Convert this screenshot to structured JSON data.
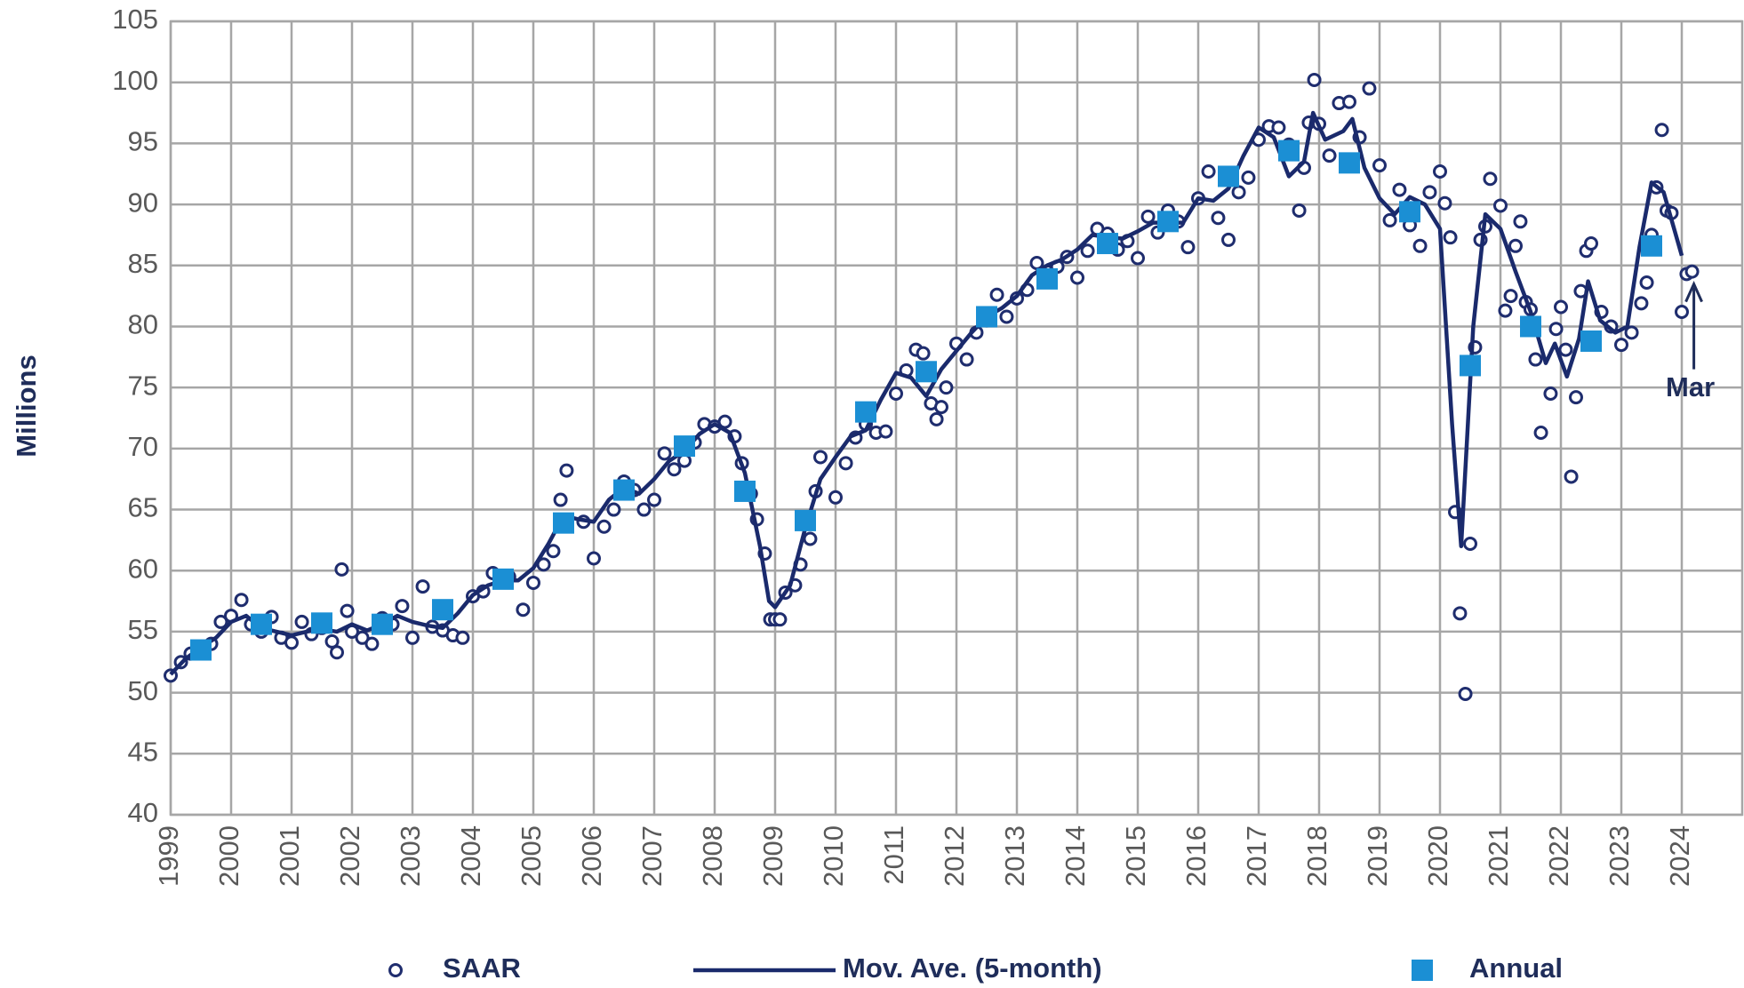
{
  "chart_data": {
    "type": "combo",
    "y_label": "Millions",
    "xlim": [
      1999,
      2025
    ],
    "ylim": [
      40,
      105
    ],
    "xticks": [
      1999,
      2000,
      2001,
      2002,
      2003,
      2004,
      2005,
      2006,
      2007,
      2008,
      2009,
      2010,
      2011,
      2012,
      2013,
      2014,
      2015,
      2016,
      2017,
      2018,
      2019,
      2020,
      2021,
      2022,
      2023,
      2024
    ],
    "yticks": [
      40,
      45,
      50,
      55,
      60,
      65,
      70,
      75,
      80,
      85,
      90,
      95,
      100,
      105
    ],
    "grid": true,
    "legend": "bottom",
    "annotation": {
      "text": "Mar",
      "x": 2024.2,
      "y": 84.5
    },
    "series": [
      {
        "name": "SAAR",
        "type": "scatter",
        "color": "#1f2d6e",
        "x": [
          1999.0,
          1999.17,
          1999.33,
          1999.5,
          1999.67,
          1999.83,
          2000.0,
          2000.17,
          2000.33,
          2000.5,
          2000.67,
          2000.83,
          2001.0,
          2001.17,
          2001.33,
          2001.5,
          2001.67,
          2001.75,
          2001.83,
          2001.92,
          2002.0,
          2002.17,
          2002.33,
          2002.5,
          2002.67,
          2002.83,
          2003.0,
          2003.17,
          2003.33,
          2003.5,
          2003.67,
          2003.83,
          2004.0,
          2004.17,
          2004.33,
          2004.5,
          2004.6,
          2004.83,
          2005.0,
          2005.17,
          2005.33,
          2005.45,
          2005.55,
          2005.83,
          2006.0,
          2006.17,
          2006.33,
          2006.5,
          2006.67,
          2006.83,
          2007.0,
          2007.17,
          2007.33,
          2007.5,
          2007.67,
          2007.83,
          2008.0,
          2008.17,
          2008.33,
          2008.45,
          2008.6,
          2008.7,
          2008.83,
          2008.92,
          2009.0,
          2009.08,
          2009.17,
          2009.33,
          2009.42,
          2009.58,
          2009.67,
          2009.75,
          2010.0,
          2010.17,
          2010.33,
          2010.5,
          2010.67,
          2010.83,
          2011.0,
          2011.17,
          2011.33,
          2011.45,
          2011.58,
          2011.67,
          2011.75,
          2011.83,
          2012.0,
          2012.17,
          2012.33,
          2012.5,
          2012.67,
          2012.83,
          2013.0,
          2013.17,
          2013.33,
          2013.5,
          2013.67,
          2013.83,
          2014.0,
          2014.17,
          2014.33,
          2014.5,
          2014.67,
          2014.83,
          2015.0,
          2015.17,
          2015.33,
          2015.5,
          2015.67,
          2015.83,
          2016.0,
          2016.17,
          2016.33,
          2016.5,
          2016.67,
          2016.83,
          2017.0,
          2017.17,
          2017.33,
          2017.5,
          2017.67,
          2017.75,
          2017.83,
          2017.92,
          2018.0,
          2018.17,
          2018.33,
          2018.5,
          2018.67,
          2018.83,
          2019.0,
          2019.17,
          2019.33,
          2019.5,
          2019.67,
          2019.83,
          2020.0,
          2020.08,
          2020.17,
          2020.25,
          2020.33,
          2020.42,
          2020.5,
          2020.58,
          2020.67,
          2020.75,
          2020.83,
          2021.0,
          2021.08,
          2021.17,
          2021.25,
          2021.33,
          2021.42,
          2021.5,
          2021.58,
          2021.67,
          2021.83,
          2021.92,
          2022.0,
          2022.08,
          2022.17,
          2022.25,
          2022.33,
          2022.42,
          2022.5,
          2022.67,
          2022.83,
          2023.0,
          2023.17,
          2023.33,
          2023.42,
          2023.5,
          2023.58,
          2023.67,
          2023.75,
          2023.83,
          2024.0,
          2024.08,
          2024.17
        ],
        "values": [
          51.4,
          52.5,
          53.2,
          53.5,
          54.0,
          55.8,
          56.3,
          57.6,
          55.6,
          55.0,
          56.2,
          54.5,
          54.1,
          55.8,
          54.8,
          55.3,
          54.2,
          53.3,
          60.1,
          56.7,
          55.0,
          54.5,
          54.0,
          56.1,
          55.6,
          57.1,
          54.5,
          58.7,
          55.4,
          55.1,
          54.7,
          54.5,
          57.9,
          58.3,
          59.8,
          59.3,
          59.5,
          56.8,
          59.0,
          60.5,
          61.6,
          65.8,
          68.2,
          64.0,
          61.0,
          63.6,
          65.0,
          67.3,
          66.6,
          65.0,
          65.8,
          69.6,
          68.3,
          69.0,
          70.5,
          72.0,
          71.8,
          72.2,
          71.0,
          68.8,
          66.3,
          64.2,
          61.4,
          56.0,
          56.0,
          56.0,
          58.2,
          58.8,
          60.5,
          62.6,
          66.5,
          69.3,
          66.0,
          68.8,
          70.9,
          72.0,
          71.3,
          71.4,
          74.5,
          76.4,
          78.1,
          77.8,
          73.7,
          72.4,
          73.4,
          75.0,
          78.6,
          77.3,
          79.5,
          80.5,
          82.6,
          80.8,
          82.3,
          83.0,
          85.2,
          84.5,
          84.9,
          85.7,
          84.0,
          86.2,
          88.0,
          87.6,
          86.3,
          87.0,
          85.6,
          89.0,
          87.7,
          89.5,
          88.6,
          86.5,
          90.5,
          92.7,
          88.9,
          87.1,
          91.0,
          92.2,
          95.3,
          96.4,
          96.3,
          94.9,
          89.5,
          93.0,
          96.7,
          100.2,
          96.6,
          94.0,
          98.3,
          98.4,
          95.5,
          99.5,
          93.2,
          88.7,
          91.2,
          88.3,
          86.6,
          91.0,
          92.7,
          90.1,
          87.3,
          64.8,
          56.5,
          49.9,
          62.2,
          78.3,
          87.1,
          88.2,
          92.1,
          89.9,
          81.3,
          82.5,
          86.6,
          88.6,
          82.0,
          81.4,
          77.3,
          71.3,
          74.5,
          79.8,
          81.6,
          78.1,
          67.7,
          74.2,
          82.9,
          86.2,
          86.8,
          81.2,
          80.0,
          78.5,
          79.5,
          81.9,
          83.6,
          87.5,
          91.4,
          96.1,
          89.5,
          89.3,
          81.2,
          84.3,
          84.5
        ]
      },
      {
        "name": "Mov. Ave. (5-month)",
        "type": "line",
        "color": "#1a2a6c",
        "x": [
          1999.0,
          1999.25,
          1999.5,
          1999.75,
          2000.0,
          2000.25,
          2000.5,
          2000.75,
          2001.0,
          2001.25,
          2001.5,
          2001.75,
          2002.0,
          2002.25,
          2002.5,
          2002.75,
          2003.0,
          2003.25,
          2003.5,
          2003.75,
          2004.0,
          2004.25,
          2004.5,
          2004.75,
          2005.0,
          2005.25,
          2005.5,
          2005.75,
          2006.0,
          2006.25,
          2006.5,
          2006.75,
          2007.0,
          2007.25,
          2007.5,
          2007.75,
          2008.0,
          2008.25,
          2008.5,
          2008.75,
          2008.9,
          2009.0,
          2009.25,
          2009.5,
          2009.75,
          2010.0,
          2010.25,
          2010.5,
          2010.75,
          2011.0,
          2011.25,
          2011.5,
          2011.75,
          2012.0,
          2012.25,
          2012.5,
          2012.75,
          2013.0,
          2013.25,
          2013.5,
          2013.75,
          2014.0,
          2014.25,
          2014.5,
          2014.75,
          2015.0,
          2015.25,
          2015.5,
          2015.75,
          2016.0,
          2016.25,
          2016.5,
          2016.75,
          2017.0,
          2017.25,
          2017.5,
          2017.75,
          2017.9,
          2018.1,
          2018.4,
          2018.55,
          2018.75,
          2019.0,
          2019.25,
          2019.5,
          2019.75,
          2020.0,
          2020.2,
          2020.35,
          2020.55,
          2020.75,
          2021.0,
          2021.25,
          2021.5,
          2021.75,
          2021.9,
          2022.1,
          2022.3,
          2022.45,
          2022.65,
          2022.9,
          2023.1,
          2023.3,
          2023.5,
          2023.7,
          2024.0
        ],
        "values": [
          51.5,
          52.8,
          53.7,
          54.5,
          55.8,
          56.3,
          55.3,
          55.0,
          54.7,
          55.0,
          55.2,
          55.0,
          55.6,
          55.1,
          55.6,
          56.3,
          55.8,
          55.5,
          55.3,
          56.5,
          58.0,
          58.8,
          59.2,
          59.2,
          60.2,
          62.2,
          64.5,
          64.2,
          64.0,
          65.8,
          66.8,
          66.3,
          67.5,
          69.0,
          69.8,
          71.2,
          72.0,
          71.3,
          68.0,
          62.0,
          57.5,
          57.0,
          58.8,
          63.5,
          67.5,
          69.3,
          71.0,
          71.5,
          74.0,
          76.2,
          75.8,
          74.3,
          76.5,
          78.0,
          79.5,
          80.8,
          81.5,
          82.5,
          84.2,
          85.0,
          85.5,
          86.3,
          87.5,
          87.3,
          87.2,
          87.8,
          88.5,
          88.5,
          88.5,
          90.5,
          90.3,
          91.3,
          94.0,
          96.3,
          95.5,
          92.3,
          93.5,
          97.5,
          95.3,
          96.0,
          97.0,
          93.0,
          90.5,
          89.2,
          90.6,
          90.0,
          88.0,
          72.0,
          62.0,
          80.0,
          89.2,
          88.0,
          84.5,
          81.2,
          77.0,
          78.6,
          75.9,
          79.0,
          83.7,
          80.5,
          79.5,
          80.0,
          86.5,
          91.8,
          91.0,
          85.8
        ]
      },
      {
        "name": "Annual",
        "type": "square",
        "color": "#1b8fd4",
        "x": [
          1999.5,
          2000.5,
          2001.5,
          2002.5,
          2003.5,
          2004.5,
          2005.5,
          2006.5,
          2007.5,
          2008.5,
          2009.5,
          2010.5,
          2011.5,
          2012.5,
          2013.5,
          2014.5,
          2015.5,
          2016.5,
          2017.5,
          2018.5,
          2019.5,
          2020.5,
          2021.5,
          2022.5,
          2023.5
        ],
        "values": [
          53.5,
          55.6,
          55.7,
          55.6,
          56.8,
          59.3,
          63.9,
          66.6,
          70.2,
          66.5,
          64.1,
          73.0,
          76.3,
          80.8,
          83.9,
          86.8,
          88.6,
          92.3,
          94.4,
          93.4,
          89.4,
          76.8,
          80.0,
          78.8,
          86.6
        ]
      }
    ]
  }
}
